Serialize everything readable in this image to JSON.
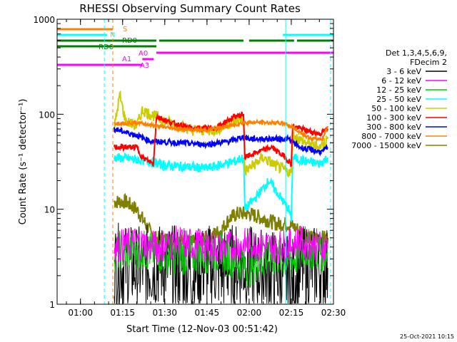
{
  "chart_data": {
    "type": "line",
    "title": "RHESSI Observing Summary Count Rates",
    "xlabel": "Start Time (12-Nov-03 00:51:42)",
    "ylabel": "Count Rate (s⁻¹ detector⁻¹)",
    "y_scale": "log",
    "ylim": [
      1,
      1000
    ],
    "xlim": [
      "00:51:42",
      "02:30:00"
    ],
    "x_ticks": [
      "01:00",
      "01:15",
      "01:30",
      "01:45",
      "02:00",
      "02:15",
      "02:30"
    ],
    "y_ticks": [
      "1",
      "10",
      "100",
      "1000"
    ],
    "legend": {
      "placement": "right",
      "header": [
        "Det 1,3,4,5,6,9,",
        "FDecim 2"
      ]
    },
    "series": [
      {
        "name": "3 - 6 keV",
        "color": "#000000",
        "key": "b3"
      },
      {
        "name": "6 - 12 keV",
        "color": "#ff00ff",
        "key": "b6"
      },
      {
        "name": "12 - 25 keV",
        "color": "#00cc00",
        "key": "b12"
      },
      {
        "name": "25 - 50 keV",
        "color": "#00ffff",
        "key": "b25"
      },
      {
        "name": "50 - 100 keV",
        "color": "#cccc00",
        "key": "b50"
      },
      {
        "name": "100 - 300 keV",
        "color": "#ff0000",
        "key": "b100"
      },
      {
        "name": "300 - 800 keV",
        "color": "#0000ff",
        "key": "b300"
      },
      {
        "name": "800 - 7000 keV",
        "color": "#ff8000",
        "key": "b800"
      },
      {
        "name": "7000 - 15000 keV",
        "color": "#808000",
        "key": "b7000"
      }
    ],
    "profiles": {
      "b800": [
        [
          "01:12",
          80
        ],
        [
          "01:20",
          82
        ],
        [
          "01:27",
          75
        ],
        [
          "01:35",
          70
        ],
        [
          "01:45",
          68
        ],
        [
          "01:53",
          75
        ],
        [
          "01:58",
          82
        ],
        [
          "02:05",
          82
        ],
        [
          "02:13",
          80
        ],
        [
          "02:18",
          65
        ],
        [
          "02:22",
          55
        ],
        [
          "02:26",
          55
        ],
        [
          "02:28",
          75
        ]
      ],
      "b100": [
        [
          "01:12",
          45
        ],
        [
          "01:20",
          45
        ],
        [
          "01:22",
          35
        ],
        [
          "01:26",
          30
        ],
        [
          "01:27",
          95
        ],
        [
          "01:32",
          82
        ],
        [
          "01:40",
          70
        ],
        [
          "01:48",
          72
        ],
        [
          "01:55",
          95
        ],
        [
          "01:58",
          100
        ],
        [
          "01:58.5",
          35
        ],
        [
          "02:03",
          40
        ],
        [
          "02:08",
          45
        ],
        [
          "02:13",
          35
        ],
        [
          "02:15",
          30
        ],
        [
          "02:15.5",
          75
        ],
        [
          "02:20",
          68
        ],
        [
          "02:25",
          62
        ],
        [
          "02:28",
          70
        ]
      ],
      "b50": [
        [
          "01:12",
          70
        ],
        [
          "01:14",
          160
        ],
        [
          "01:16",
          85
        ],
        [
          "01:20",
          75
        ],
        [
          "01:22",
          110
        ],
        [
          "01:25",
          100
        ],
        [
          "01:30",
          85
        ],
        [
          "01:40",
          68
        ],
        [
          "01:48",
          68
        ],
        [
          "01:53",
          80
        ],
        [
          "01:58",
          90
        ],
        [
          "01:58.5",
          25
        ],
        [
          "02:05",
          35
        ],
        [
          "02:10",
          28
        ],
        [
          "02:15",
          24
        ],
        [
          "02:15.5",
          60
        ],
        [
          "02:20",
          50
        ],
        [
          "02:25",
          45
        ],
        [
          "02:28",
          55
        ]
      ],
      "b300": [
        [
          "01:12",
          70
        ],
        [
          "01:20",
          60
        ],
        [
          "01:25",
          52
        ],
        [
          "01:35",
          50
        ],
        [
          "01:45",
          48
        ],
        [
          "01:53",
          52
        ],
        [
          "01:58",
          58
        ],
        [
          "02:00",
          55
        ],
        [
          "02:08",
          55
        ],
        [
          "02:14",
          55
        ],
        [
          "02:18",
          45
        ],
        [
          "02:22",
          42
        ],
        [
          "02:26",
          40
        ],
        [
          "02:28",
          45
        ]
      ],
      "b25": [
        [
          "01:12",
          35
        ],
        [
          "01:18",
          34
        ],
        [
          "01:24",
          32
        ],
        [
          "01:30",
          29
        ],
        [
          "01:45",
          27
        ],
        [
          "01:55",
          32
        ],
        [
          "01:58",
          35
        ],
        [
          "01:58.5",
          10
        ],
        [
          "02:03",
          14
        ],
        [
          "02:07",
          20
        ],
        [
          "02:10",
          15
        ],
        [
          "02:14",
          10
        ],
        [
          "02:15",
          8
        ],
        [
          "02:15.5",
          35
        ],
        [
          "02:20",
          32
        ],
        [
          "02:25",
          30
        ],
        [
          "02:28",
          35
        ]
      ],
      "b7000": [
        [
          "01:12",
          12
        ],
        [
          "01:16",
          12
        ],
        [
          "01:20",
          10
        ],
        [
          "01:22",
          8
        ],
        [
          "01:26",
          5
        ],
        [
          "01:40",
          4.5
        ],
        [
          "01:45",
          5
        ],
        [
          "01:50",
          6
        ],
        [
          "01:53",
          8
        ],
        [
          "01:56",
          9
        ],
        [
          "02:00",
          9
        ],
        [
          "02:05",
          8
        ],
        [
          "02:10",
          7
        ],
        [
          "02:14",
          7
        ],
        [
          "02:18",
          6
        ],
        [
          "02:22",
          5
        ],
        [
          "02:28",
          5
        ]
      ],
      "b6": [
        [
          "01:12",
          4
        ],
        [
          "01:20",
          4.5
        ],
        [
          "01:26",
          4
        ],
        [
          "01:35",
          4.5
        ],
        [
          "01:45",
          4
        ],
        [
          "01:53",
          4
        ],
        [
          "02:00",
          4.3
        ],
        [
          "02:10",
          4
        ],
        [
          "02:18",
          4.5
        ],
        [
          "02:28",
          4
        ]
      ],
      "b12": [
        [
          "01:12",
          3.6
        ],
        [
          "01:20",
          3.8
        ],
        [
          "01:30",
          3.4
        ],
        [
          "01:40",
          3.3
        ],
        [
          "01:50",
          3.6
        ],
        [
          "01:55",
          3
        ],
        [
          "02:00",
          2.5
        ],
        [
          "02:05",
          3
        ],
        [
          "02:10",
          3.2
        ],
        [
          "02:15",
          2.8
        ],
        [
          "02:20",
          3.8
        ],
        [
          "02:28",
          3.5
        ]
      ],
      "b3": [
        [
          "01:12",
          2.6
        ],
        [
          "01:20",
          2.4
        ],
        [
          "01:30",
          2.6
        ],
        [
          "01:40",
          2.2
        ],
        [
          "01:45",
          2.6
        ],
        [
          "01:50",
          2.3
        ],
        [
          "01:55",
          2.6
        ],
        [
          "02:00",
          2.4
        ],
        [
          "02:10",
          2.2
        ],
        [
          "02:15",
          1.8
        ],
        [
          "02:20",
          2.5
        ],
        [
          "02:28",
          2.4
        ]
      ]
    },
    "attenuator_bars": [
      {
        "label": "S",
        "color": "#ff8000",
        "segments": [
          [
            "00:51:42",
            "01:11:30"
          ]
        ]
      },
      {
        "label": "N",
        "color": "#00ffff",
        "segments": [
          [
            "00:51:42",
            "01:09:30"
          ],
          [
            "02:12",
            "02:30"
          ]
        ]
      },
      {
        "label": "RD0",
        "color": "#008000",
        "segments": [
          [
            "00:51:42",
            "01:27"
          ],
          [
            "01:28",
            "01:58"
          ],
          [
            "02:00",
            "02:16"
          ],
          [
            "02:17",
            "02:30"
          ]
        ]
      },
      {
        "label": "A0",
        "color": "#ff00ff",
        "segments": [
          [
            "01:27",
            "02:30"
          ]
        ]
      },
      {
        "label": "A1",
        "color": "#ff00ff",
        "segments": [
          [
            "01:22",
            "01:26"
          ]
        ]
      },
      {
        "label": "A3",
        "color": "#ff00ff",
        "segments": [
          [
            "00:51:42",
            "01:22"
          ]
        ]
      }
    ],
    "bar_labels": {
      "S": "S",
      "N": "N",
      "RD0": "RD0",
      "RD6": "RD6",
      "A0": "A0",
      "A1": "A1",
      "A3": "A3"
    },
    "vertical_markers": [
      {
        "time": "01:08:30",
        "color": "#00ffff",
        "style": "dashed"
      },
      {
        "time": "01:11:30",
        "color": "#ff8000",
        "style": "dashed"
      },
      {
        "time": "02:13",
        "color": "#00ffff",
        "style": "solid"
      },
      {
        "time": "02:29",
        "color": "#00ffff",
        "style": "dashed"
      }
    ],
    "footer_stamp": "25-Oct-2021 10:15"
  }
}
